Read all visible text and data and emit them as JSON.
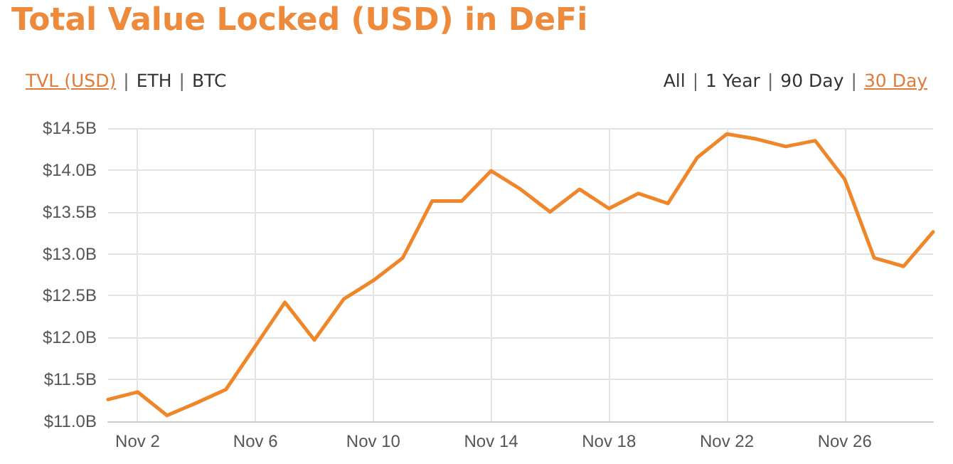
{
  "chart_data": {
    "type": "line",
    "title": "Total Value Locked (USD) in DeFi",
    "annotations": [
      "TVL (USD) | ETH | BTC",
      "All | 1 Year | 90 Day | 30 Day"
    ],
    "x": [
      "--11-01",
      "--11-02",
      "--11-03",
      "--11-04",
      "--11-05",
      "--11-06",
      "--11-07",
      "--11-08",
      "--11-09",
      "--11-10",
      "--11-11",
      "--11-12",
      "--11-13",
      "--11-14",
      "--11-15",
      "--11-16",
      "--11-17",
      "--11-18",
      "--11-19",
      "--11-20",
      "--11-21",
      "--11-22",
      "--11-23",
      "--11-24",
      "--11-25",
      "--11-26",
      "--11-27",
      "--11-28",
      "--11-29"
    ],
    "series": [
      {
        "color": "#f0862a",
        "values": [
          11.26,
          11.35,
          11.07,
          11.22,
          11.38,
          11.9,
          12.42,
          11.97,
          12.46,
          12.68,
          12.95,
          13.63,
          13.63,
          13.99,
          13.77,
          13.5,
          13.77,
          13.54,
          13.72,
          13.6,
          14.15,
          14.43,
          14.37,
          14.28,
          14.35,
          13.89,
          12.95,
          12.85,
          13.26
        ]
      }
    ],
    "xlim": [
      "--11-01",
      "--11-29"
    ],
    "xticks": [
      {
        "value": "--11-02",
        "label": "Nov 2"
      },
      {
        "value": "--11-06",
        "label": "Nov 6"
      },
      {
        "value": "--11-10",
        "label": "Nov 10"
      },
      {
        "value": "--11-14",
        "label": "Nov 14"
      },
      {
        "value": "--11-18",
        "label": "Nov 18"
      },
      {
        "value": "--11-22",
        "label": "Nov 22"
      },
      {
        "value": "--11-26",
        "label": "Nov 26"
      }
    ],
    "ylim": [
      11,
      14.5
    ],
    "yticks": [
      {
        "value": 11,
        "label": "$11.0B"
      },
      {
        "value": 11.5,
        "label": "$11.5B"
      },
      {
        "value": 12,
        "label": "$12.0B"
      },
      {
        "value": 12.5,
        "label": "$12.5B"
      },
      {
        "value": 13,
        "label": "$13.0B"
      },
      {
        "value": 13.5,
        "label": "$13.5B"
      },
      {
        "value": 14,
        "label": "$14.0B"
      },
      {
        "value": 14.5,
        "label": "$14.5B"
      }
    ],
    "grid": true,
    "marker": "none",
    "line_style": "solid"
  }
}
